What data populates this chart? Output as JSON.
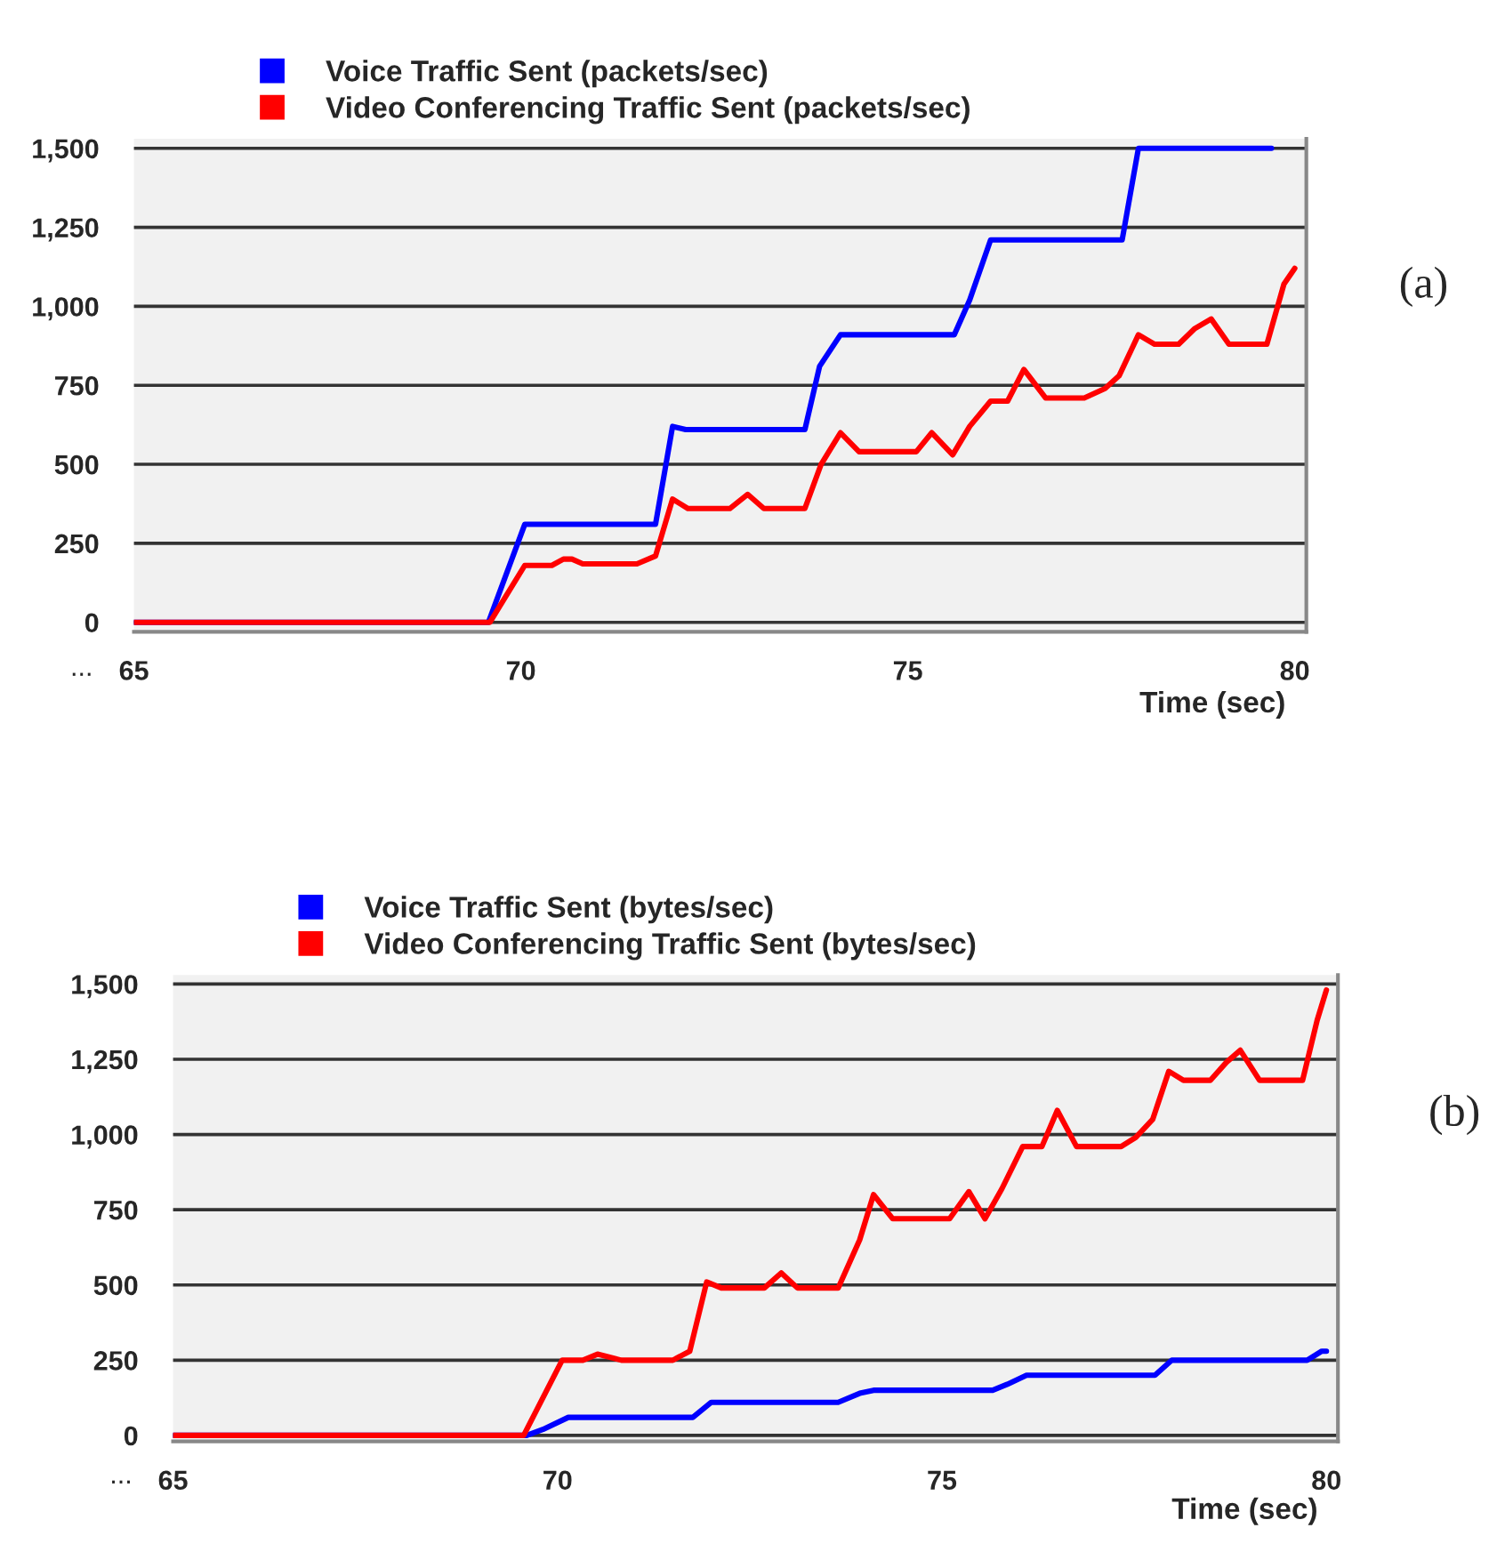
{
  "chart_data": [
    {
      "type": "line",
      "xlabel": "Time (sec)",
      "xlim": [
        65,
        80.15
      ],
      "ylim": [
        -30,
        1530
      ],
      "xticks": [
        65,
        70,
        75,
        80
      ],
      "yticks": [
        0,
        {
          "value": 250,
          "label": "250"
        },
        {
          "value": 500,
          "label": "500"
        },
        {
          "value": 750,
          "label": "750"
        },
        {
          "value": 1000,
          "label": "1,000"
        },
        {
          "value": 1250,
          "label": "1,250"
        },
        {
          "value": 1500,
          "label": "1,500"
        }
      ],
      "grid": "y",
      "legend": "top",
      "marker": "none",
      "line_style": "solid",
      "annotations": [
        "...",
        "(a)"
      ],
      "series": [
        {
          "name": "Voice Traffic Sent (packets/sec)",
          "color": "#0000ff",
          "x": [
            65,
            69.58,
            70.05,
            71.74,
            71.96,
            72.13,
            73.67,
            73.86,
            74.13,
            75.6,
            75.8,
            76.07,
            77.77,
            77.98,
            79.7
          ],
          "values": [
            0,
            0,
            310,
            310,
            620,
            610,
            610,
            810,
            910,
            910,
            1020,
            1210,
            1210,
            1500,
            1500
          ]
        },
        {
          "name": "Video Conferencing Traffic Sent (packets/sec)",
          "color": "#ff0000",
          "x": [
            65,
            69.6,
            70.05,
            70.4,
            70.55,
            70.66,
            70.8,
            71.5,
            71.74,
            71.96,
            72.16,
            72.7,
            72.93,
            73.14,
            73.67,
            73.88,
            74.13,
            74.37,
            75.11,
            75.31,
            75.58,
            75.8,
            76.07,
            76.29,
            76.5,
            76.78,
            77.28,
            77.55,
            77.73,
            77.98,
            78.19,
            78.5,
            78.71,
            78.92,
            79.15,
            79.64,
            79.86,
            80
          ],
          "values": [
            0,
            0,
            180,
            180,
            200,
            200,
            185,
            185,
            210,
            390,
            360,
            360,
            405,
            360,
            360,
            500,
            600,
            540,
            540,
            600,
            530,
            620,
            700,
            700,
            800,
            710,
            710,
            740,
            780,
            910,
            880,
            880,
            930,
            960,
            880,
            880,
            1070,
            1120
          ]
        }
      ]
    },
    {
      "type": "line",
      "xlabel": "Time (sec)",
      "xlim": [
        65,
        80.15
      ],
      "ylim": [
        -20,
        1530
      ],
      "xticks": [
        65,
        70,
        75,
        80
      ],
      "yticks": [
        0,
        {
          "value": 250,
          "label": "250"
        },
        {
          "value": 500,
          "label": "500"
        },
        {
          "value": 750,
          "label": "750"
        },
        {
          "value": 1000,
          "label": "1,000"
        },
        {
          "value": 1250,
          "label": "1,250"
        },
        {
          "value": 1500,
          "label": "1,500"
        }
      ],
      "grid": "y",
      "legend": "top",
      "marker": "none",
      "line_style": "solid",
      "annotations": [
        "...",
        "(b)"
      ],
      "series": [
        {
          "name": "Voice Traffic Sent (bytes/sec)",
          "color": "#0000ff",
          "x": [
            65,
            69.6,
            69.81,
            70.14,
            71.76,
            72.0,
            73.65,
            73.93,
            74.11,
            75.66,
            75.85,
            76.1,
            77.77,
            77.99,
            79.75,
            79.94,
            80
          ],
          "values": [
            0,
            0,
            20,
            60,
            60,
            110,
            110,
            140,
            150,
            150,
            170,
            200,
            200,
            250,
            250,
            280,
            280
          ]
        },
        {
          "name": "Video Conferencing Traffic Sent (bytes/sec)",
          "color": "#ff0000",
          "x": [
            65,
            69.56,
            70.06,
            70.33,
            70.52,
            70.83,
            71.5,
            71.72,
            71.94,
            72.13,
            72.69,
            72.91,
            73.12,
            73.65,
            73.93,
            74.11,
            74.36,
            75.1,
            75.35,
            75.56,
            75.78,
            76.05,
            76.3,
            76.5,
            76.75,
            77.33,
            77.52,
            77.74,
            77.95,
            78.14,
            78.49,
            78.7,
            78.88,
            79.13,
            79.69,
            79.88,
            80
          ],
          "values": [
            0,
            0,
            250,
            250,
            270,
            250,
            250,
            280,
            510,
            490,
            490,
            540,
            490,
            490,
            650,
            800,
            720,
            720,
            810,
            720,
            820,
            960,
            960,
            1080,
            960,
            960,
            990,
            1050,
            1210,
            1180,
            1180,
            1240,
            1280,
            1180,
            1180,
            1380,
            1480
          ]
        }
      ]
    }
  ]
}
